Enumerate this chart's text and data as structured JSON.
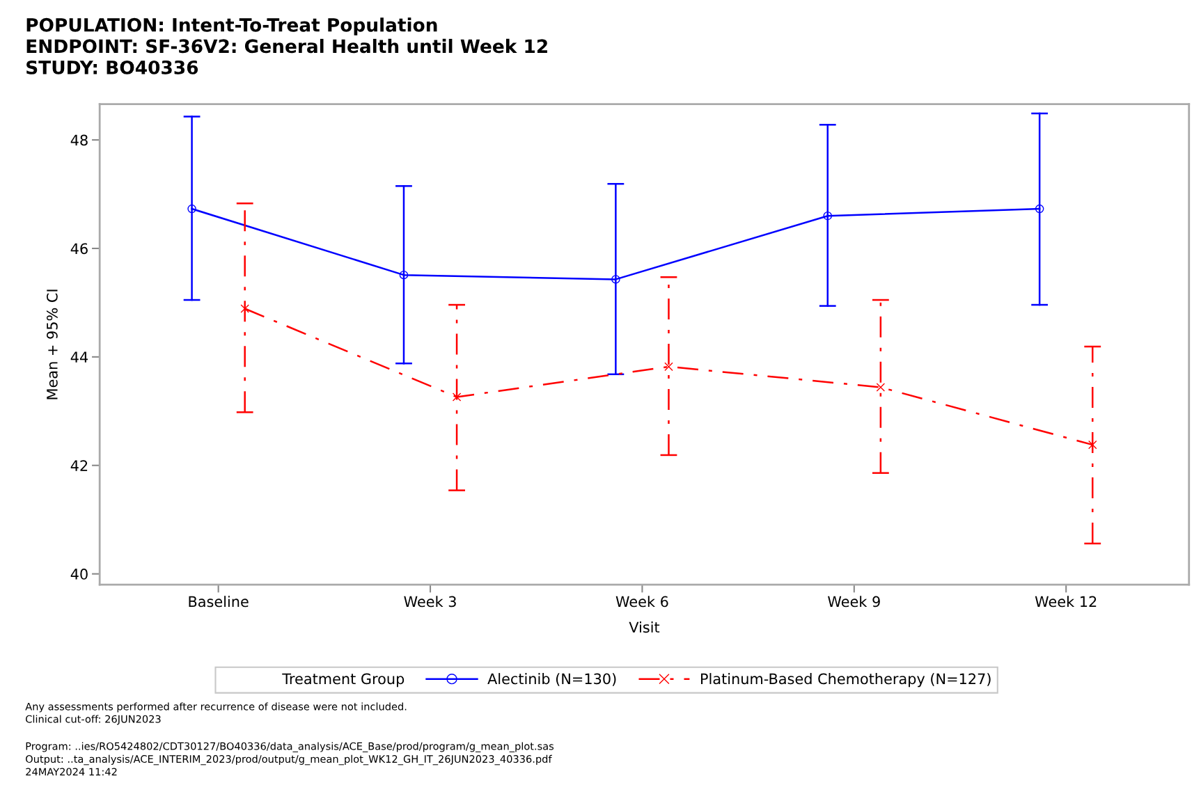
{
  "chart_data": {
    "type": "line",
    "title": "POPULATION: Intent-To-Treat Population\nENDPOINT: SF-36V2: General Health until Week 12\nSTUDY: BO40336",
    "xlabel": "Visit",
    "ylabel": "Mean + 95% CI",
    "legend_title": "Treatment Group",
    "legend": "bottom",
    "categories": [
      "Baseline",
      "Week 3",
      "Week 6",
      "Week 9",
      "Week 12"
    ],
    "series": [
      {
        "name": "Alectinib (N=130)",
        "color": "#0000ff",
        "marker": "circle",
        "line_style": "solid",
        "values": [
          46.73,
          45.51,
          45.43,
          46.6,
          46.73
        ],
        "errors": [
          [
            45.05,
            48.43
          ],
          [
            43.88,
            47.15
          ],
          [
            43.68,
            47.19
          ],
          [
            44.94,
            48.28
          ],
          [
            44.96,
            48.49
          ]
        ]
      },
      {
        "name": "Platinum-Based Chemotherapy (N=127)",
        "color": "#ff0000",
        "marker": "cross",
        "line_style": "dashdot",
        "values": [
          44.89,
          43.26,
          43.82,
          43.44,
          42.38
        ],
        "errors": [
          [
            42.98,
            46.83
          ],
          [
            41.54,
            44.96
          ],
          [
            42.19,
            45.47
          ],
          [
            41.86,
            45.05
          ],
          [
            40.56,
            44.19
          ]
        ]
      }
    ],
    "ylim": [
      39.8,
      48.66
    ],
    "yticks": [
      40,
      42,
      44,
      46,
      48
    ],
    "grid": false,
    "annotations": [
      "Any assessments performed after recurrence of disease were not included.\nClinical cut-off: 26JUN2023",
      "Program: ..ies/RO5424802/CDT30127/BO40336/data_analysis/ACE_Base/prod/program/g_mean_plot.sas\nOutput: ..ta_analysis/ACE_INTERIM_2023/prod/output/g_mean_plot_WK12_GH_IT_26JUN2023_40336.pdf\n24MAY2024 11:42"
    ]
  }
}
